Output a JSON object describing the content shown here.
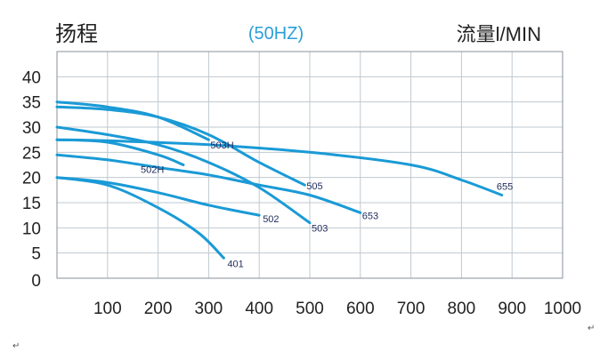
{
  "colors": {
    "curve": "#1a9ad6",
    "grid": "#bfc8d0",
    "frame": "#8a9098",
    "axis_text": "#222222",
    "title_center": "#2a9fd8",
    "curve_label": "#1f2a5a"
  },
  "chart_data": {
    "type": "line",
    "title_left": "扬程",
    "title_center": "(50HZ)",
    "title_right": "流量l/MIN",
    "xlabel": "",
    "ylabel": "",
    "xlim": [
      0,
      1000
    ],
    "ylim": [
      0,
      45
    ],
    "grid": true,
    "x_ticks": [
      {
        "v": 100,
        "label": "100"
      },
      {
        "v": 200,
        "label": "200"
      },
      {
        "v": 300,
        "label": "300"
      },
      {
        "v": 400,
        "label": "400"
      },
      {
        "v": 500,
        "label": "500"
      },
      {
        "v": 600,
        "label": "600"
      },
      {
        "v": 700,
        "label": "700"
      },
      {
        "v": 800,
        "label": "800"
      },
      {
        "v": 900,
        "label": "900"
      },
      {
        "v": 1000,
        "label": "1000"
      }
    ],
    "y_ticks": [
      {
        "v": 0,
        "label": "0"
      },
      {
        "v": 5,
        "label": "5"
      },
      {
        "v": 10,
        "label": "10"
      },
      {
        "v": 15,
        "label": "15"
      },
      {
        "v": 20,
        "label": "20"
      },
      {
        "v": 25,
        "label": "25"
      },
      {
        "v": 30,
        "label": "30"
      },
      {
        "v": 35,
        "label": "35"
      },
      {
        "v": 40,
        "label": "40"
      }
    ],
    "series": [
      {
        "name": "401",
        "points": [
          [
            0,
            20
          ],
          [
            100,
            18.5
          ],
          [
            200,
            14
          ],
          [
            280,
            9
          ],
          [
            330,
            4
          ]
        ]
      },
      {
        "name": "502",
        "points": [
          [
            0,
            20
          ],
          [
            100,
            19
          ],
          [
            200,
            17
          ],
          [
            300,
            14.5
          ],
          [
            400,
            12.5
          ]
        ]
      },
      {
        "name": "502H",
        "points": [
          [
            0,
            27.5
          ],
          [
            100,
            27
          ],
          [
            200,
            24.5
          ],
          [
            250,
            22.5
          ]
        ]
      },
      {
        "name": "503H",
        "points": [
          [
            0,
            35
          ],
          [
            100,
            34
          ],
          [
            200,
            32
          ],
          [
            300,
            27.5
          ]
        ]
      },
      {
        "name": "503",
        "points": [
          [
            0,
            30
          ],
          [
            100,
            28.5
          ],
          [
            200,
            26.5
          ],
          [
            300,
            23
          ],
          [
            400,
            18
          ],
          [
            500,
            11
          ]
        ]
      },
      {
        "name": "505",
        "points": [
          [
            0,
            34
          ],
          [
            100,
            33.5
          ],
          [
            200,
            32
          ],
          [
            300,
            28.5
          ],
          [
            400,
            23
          ],
          [
            490,
            18.5
          ]
        ]
      },
      {
        "name": "653",
        "points": [
          [
            0,
            24.5
          ],
          [
            100,
            23.5
          ],
          [
            200,
            22
          ],
          [
            300,
            20.5
          ],
          [
            400,
            18.5
          ],
          [
            500,
            16.5
          ],
          [
            600,
            13
          ]
        ]
      },
      {
        "name": "655",
        "points": [
          [
            0,
            27.5
          ],
          [
            100,
            27.3
          ],
          [
            300,
            26.5
          ],
          [
            500,
            25
          ],
          [
            700,
            22.5
          ],
          [
            800,
            19.5
          ],
          [
            880,
            16.5
          ]
        ]
      }
    ]
  }
}
